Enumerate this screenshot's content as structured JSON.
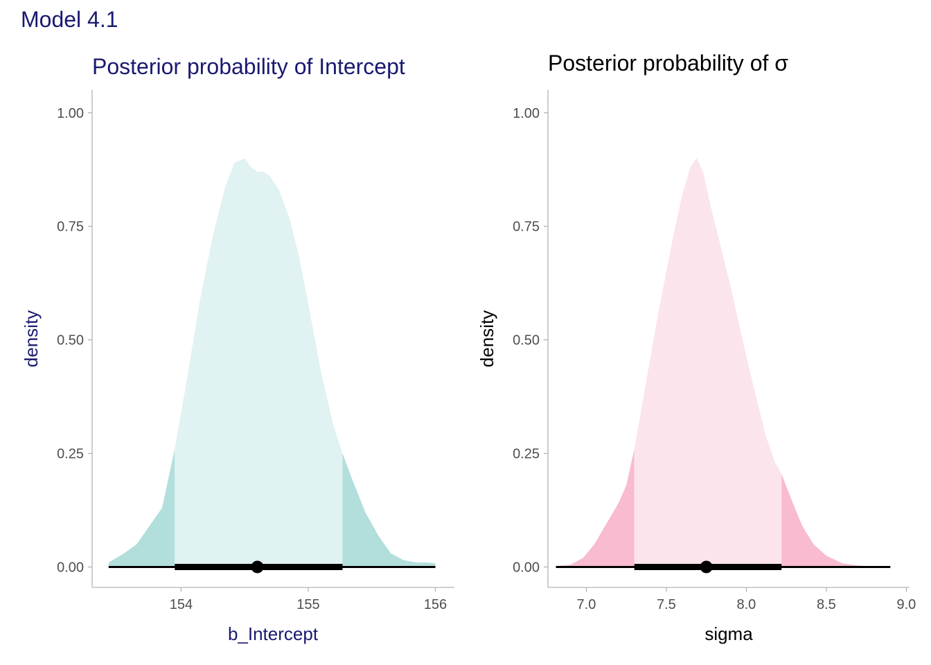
{
  "figure_title": "Model 4.1",
  "colors": {
    "title_navy": "#191970",
    "teal_tail": "#b2dfdb",
    "teal_center": "#e0f2f1",
    "pink_tail": "#f8bbd0",
    "pink_center": "#fce4ec",
    "axis_line": "#b3b3b3",
    "interval": "#000000"
  },
  "chart_data": [
    {
      "type": "area",
      "title": "Posterior probability of Intercept",
      "xlabel": "b_Intercept",
      "ylabel": "density",
      "xlim": [
        153.3,
        156.15
      ],
      "ylim": [
        -0.045,
        1.05
      ],
      "xticks": [
        154,
        155,
        156
      ],
      "xtick_labels": [
        "154",
        "155",
        "156"
      ],
      "yticks": [
        0,
        0.25,
        0.5,
        0.75,
        1
      ],
      "ytick_labels": [
        "0.00",
        "0.25",
        "0.50",
        "0.75",
        "1.00"
      ],
      "grid": false,
      "style": "half-eye density with shaded central interval",
      "central_interval": [
        153.95,
        155.27
      ],
      "full_range": [
        153.43,
        156.0
      ],
      "point_estimate": 154.6,
      "density": {
        "x": [
          153.43,
          153.55,
          153.65,
          153.75,
          153.85,
          153.95,
          154.05,
          154.15,
          154.25,
          154.35,
          154.42,
          154.5,
          154.55,
          154.6,
          154.65,
          154.7,
          154.77,
          154.85,
          154.93,
          155.0,
          155.1,
          155.2,
          155.27,
          155.35,
          155.45,
          155.55,
          155.65,
          155.75,
          155.85,
          155.93,
          156.0
        ],
        "y": [
          0.01,
          0.03,
          0.05,
          0.09,
          0.13,
          0.26,
          0.42,
          0.59,
          0.73,
          0.84,
          0.89,
          0.9,
          0.88,
          0.87,
          0.87,
          0.86,
          0.83,
          0.77,
          0.68,
          0.58,
          0.43,
          0.31,
          0.25,
          0.19,
          0.12,
          0.07,
          0.03,
          0.015,
          0.01,
          0.01,
          0.008
        ]
      }
    },
    {
      "type": "area",
      "title": "Posterior probability of σ",
      "xlabel": "sigma",
      "ylabel": "density",
      "xlim": [
        6.76,
        9.02
      ],
      "ylim": [
        -0.045,
        1.05
      ],
      "xticks": [
        7.0,
        7.5,
        8.0,
        8.5,
        9.0
      ],
      "xtick_labels": [
        "7.0",
        "7.5",
        "8.0",
        "8.5",
        "9.0"
      ],
      "yticks": [
        0,
        0.25,
        0.5,
        0.75,
        1
      ],
      "ytick_labels": [
        "0.00",
        "0.25",
        "0.50",
        "0.75",
        "1.00"
      ],
      "grid": false,
      "style": "half-eye density with shaded central interval",
      "central_interval": [
        7.3,
        8.22
      ],
      "full_range": [
        6.81,
        8.9
      ],
      "point_estimate": 7.75,
      "density": {
        "x": [
          6.81,
          6.9,
          6.98,
          7.05,
          7.1,
          7.15,
          7.2,
          7.25,
          7.3,
          7.35,
          7.4,
          7.45,
          7.5,
          7.55,
          7.6,
          7.65,
          7.69,
          7.73,
          7.78,
          7.83,
          7.9,
          7.97,
          8.05,
          8.12,
          8.18,
          8.22,
          8.28,
          8.35,
          8.42,
          8.5,
          8.6,
          8.7,
          8.8,
          8.9
        ],
        "y": [
          0.002,
          0.005,
          0.02,
          0.05,
          0.08,
          0.11,
          0.14,
          0.18,
          0.26,
          0.36,
          0.46,
          0.56,
          0.65,
          0.74,
          0.82,
          0.88,
          0.9,
          0.87,
          0.79,
          0.72,
          0.62,
          0.51,
          0.39,
          0.29,
          0.23,
          0.205,
          0.15,
          0.09,
          0.05,
          0.025,
          0.008,
          0.003,
          0.001,
          0.0
        ]
      }
    }
  ]
}
